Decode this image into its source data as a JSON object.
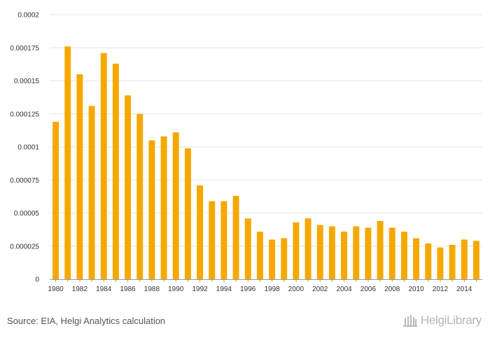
{
  "chart_data": {
    "type": "bar",
    "title": "",
    "xlabel": "",
    "ylabel": "",
    "bar_color": "#f5a800",
    "grid_color": "#e6e6e6",
    "axis_color": "#999999",
    "ylim": [
      0,
      0.0002
    ],
    "yticks": [
      "0",
      "0.000025",
      "0.00005",
      "0.000075",
      "0.0001",
      "0.000125",
      "0.00015",
      "0.000175",
      "0.0002"
    ],
    "categories": [
      "1980",
      "1981",
      "1982",
      "1983",
      "1984",
      "1985",
      "1986",
      "1987",
      "1988",
      "1989",
      "1990",
      "1991",
      "1992",
      "1993",
      "1994",
      "1995",
      "1996",
      "1997",
      "1998",
      "1999",
      "2000",
      "2001",
      "2002",
      "2003",
      "2004",
      "2005",
      "2006",
      "2007",
      "2008",
      "2009",
      "2010",
      "2011",
      "2012",
      "2013",
      "2014",
      "2015"
    ],
    "xtick_labels": [
      "1980",
      "",
      "1982",
      "",
      "1984",
      "",
      "1986",
      "",
      "1988",
      "",
      "1990",
      "",
      "1992",
      "",
      "1994",
      "",
      "1996",
      "",
      "1998",
      "",
      "2000",
      "",
      "2002",
      "",
      "2004",
      "",
      "2006",
      "",
      "2008",
      "",
      "2010",
      "",
      "2012",
      "",
      "2014",
      ""
    ],
    "values": [
      0.000119,
      0.000176,
      0.000155,
      0.000131,
      0.000171,
      0.000163,
      0.000139,
      0.000125,
      0.000105,
      0.000108,
      0.000111,
      9.9e-05,
      7.1e-05,
      5.9e-05,
      5.9e-05,
      6.3e-05,
      4.6e-05,
      3.6e-05,
      3e-05,
      3.1e-05,
      4.3e-05,
      4.6e-05,
      4.1e-05,
      4e-05,
      3.6e-05,
      4e-05,
      3.9e-05,
      4.4e-05,
      3.9e-05,
      3.6e-05,
      3.1e-05,
      2.7e-05,
      2.4e-05,
      2.6e-05,
      3e-05,
      2.9e-05
    ]
  },
  "footer": {
    "source": "Source: EIA, Helgi Analytics calculation",
    "logo_text": "HelgiLibrary",
    "logo_icon": "library-building-icon"
  }
}
